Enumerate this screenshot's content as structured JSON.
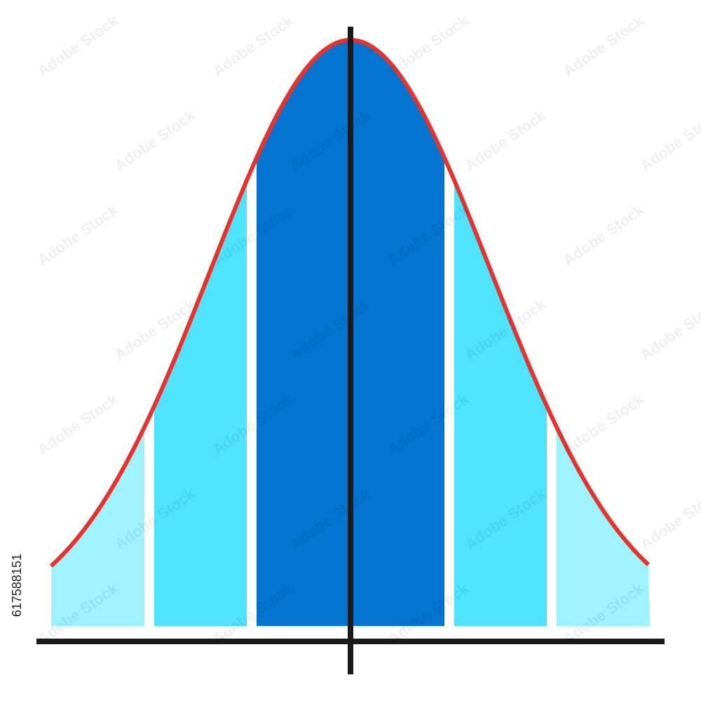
{
  "image_id": "617588151",
  "watermark": "Adobe Stock"
}
